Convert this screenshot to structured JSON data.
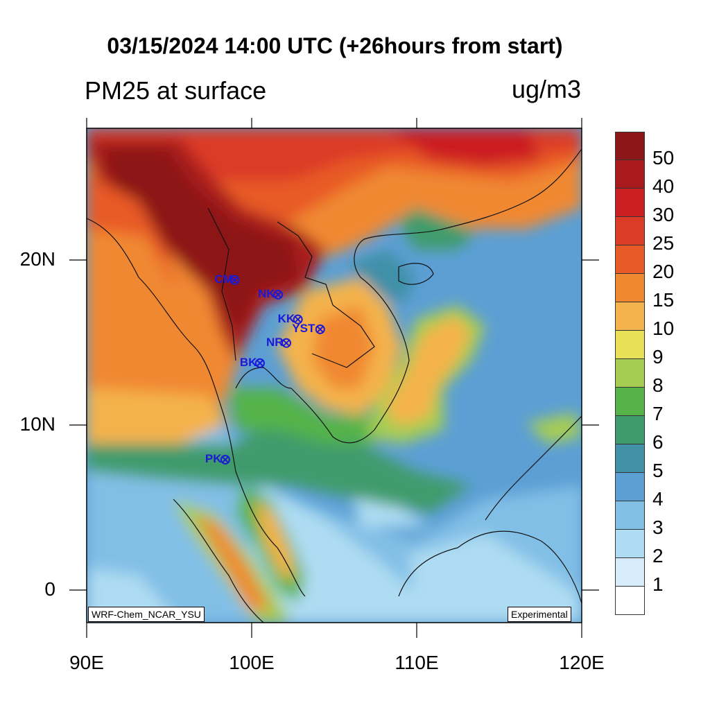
{
  "title": "03/15/2024 14:00 UTC (+26hours from start)",
  "subtitle_left": "PM25 at surface",
  "subtitle_right": "ug/m3",
  "lat_labels": [
    "20N",
    "10N",
    "0"
  ],
  "lon_labels": [
    "90E",
    "100E",
    "110E",
    "120E"
  ],
  "legend": {
    "labels": [
      "50",
      "40",
      "30",
      "25",
      "20",
      "15",
      "10",
      "9",
      "8",
      "7",
      "6",
      "5",
      "4",
      "3",
      "2",
      "1"
    ],
    "colors": [
      "#8c1719",
      "#a81a1c",
      "#cc1f24",
      "#dc3b26",
      "#e85a28",
      "#f08832",
      "#f4b24c",
      "#e8e056",
      "#a6cd52",
      "#55b34a",
      "#3f9b6c",
      "#4190a8",
      "#5c9fd4",
      "#82bfe6",
      "#aedcf2",
      "#d6ecfa",
      "#ffffff"
    ]
  },
  "model_tag": "WRF-Chem_NCAR_YSU",
  "status_tag": "Experimental",
  "sites": [
    {
      "code": "CM",
      "lon": 98.97,
      "lat": 18.79
    },
    {
      "code": "NK",
      "lon": 101.6,
      "lat": 17.9
    },
    {
      "code": "KK",
      "lon": 102.8,
      "lat": 16.4
    },
    {
      "code": "YST",
      "lon": 104.15,
      "lat": 15.8
    },
    {
      "code": "NR",
      "lon": 102.1,
      "lat": 14.97
    },
    {
      "code": "BK",
      "lon": 100.5,
      "lat": 13.75
    },
    {
      "code": "PK",
      "lon": 98.4,
      "lat": 7.9
    }
  ]
}
